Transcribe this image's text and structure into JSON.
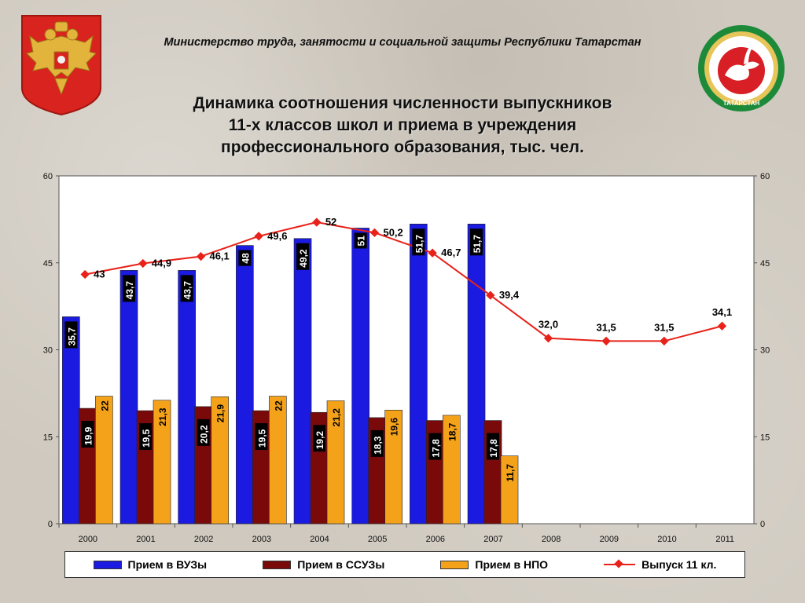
{
  "header": {
    "ministry": "Министерство  труда,  занятости и социальной защиты Республики Татарстан",
    "title_lines": [
      "Динамика соотношения численности выпускников",
      "11-х классов школ и приема в учреждения",
      "профессионального образования, тыс. чел."
    ],
    "tt_emblem_text": "ТАТАРСТАН"
  },
  "colors": {
    "vuz": "#1a1ae0",
    "ssuz": "#7a0a0a",
    "npo": "#f5a21b",
    "line": "#e8221a",
    "plot_bg": "#ffffff"
  },
  "chart_data": {
    "type": "bar",
    "categories": [
      "2000",
      "2001",
      "2002",
      "2003",
      "2004",
      "2005",
      "2006",
      "2007",
      "2008",
      "2009",
      "2010",
      "2011"
    ],
    "ylim": [
      0,
      60
    ],
    "yticks": [
      0,
      15,
      30,
      45,
      60
    ],
    "series": [
      {
        "name": "Прием в ВУЗы",
        "type": "bar",
        "values": [
          35.7,
          43.7,
          43.7,
          48,
          49.2,
          51,
          51.7,
          51.7,
          null,
          null,
          null,
          null
        ],
        "labels": [
          "35,7",
          "43,7",
          "43,7",
          "48",
          "49,2",
          "51",
          "51,7",
          "51,7",
          "",
          "",
          "",
          ""
        ]
      },
      {
        "name": "Прием в ССУЗы",
        "type": "bar",
        "values": [
          19.9,
          19.5,
          20.2,
          19.5,
          19.2,
          18.3,
          17.8,
          17.8,
          null,
          null,
          null,
          null
        ],
        "labels": [
          "19,9",
          "19,5",
          "20,2",
          "19,5",
          "19,2",
          "18,3",
          "17,8",
          "17,8",
          "",
          "",
          "",
          ""
        ]
      },
      {
        "name": "Прием в НПО",
        "type": "bar",
        "values": [
          22,
          21.3,
          21.9,
          22,
          21.2,
          19.6,
          18.7,
          11.7,
          null,
          null,
          null,
          null
        ],
        "labels": [
          "22",
          "21,3",
          "21,9",
          "22",
          "21,2",
          "19,6",
          "18,7",
          "11,7",
          "",
          "",
          "",
          ""
        ]
      },
      {
        "name": "Выпуск 11 кл.",
        "type": "line",
        "values": [
          43,
          44.9,
          46.1,
          49.6,
          52,
          50.2,
          46.7,
          39.4,
          32.0,
          31.5,
          31.5,
          34.1
        ],
        "labels": [
          "43",
          "44,9",
          "46,1",
          "49,6",
          "52",
          "50,2",
          "46,7",
          "39,4",
          "32,0",
          "31,5",
          "31,5",
          "34,1"
        ]
      }
    ],
    "legend_position": "bottom",
    "grid": false
  }
}
